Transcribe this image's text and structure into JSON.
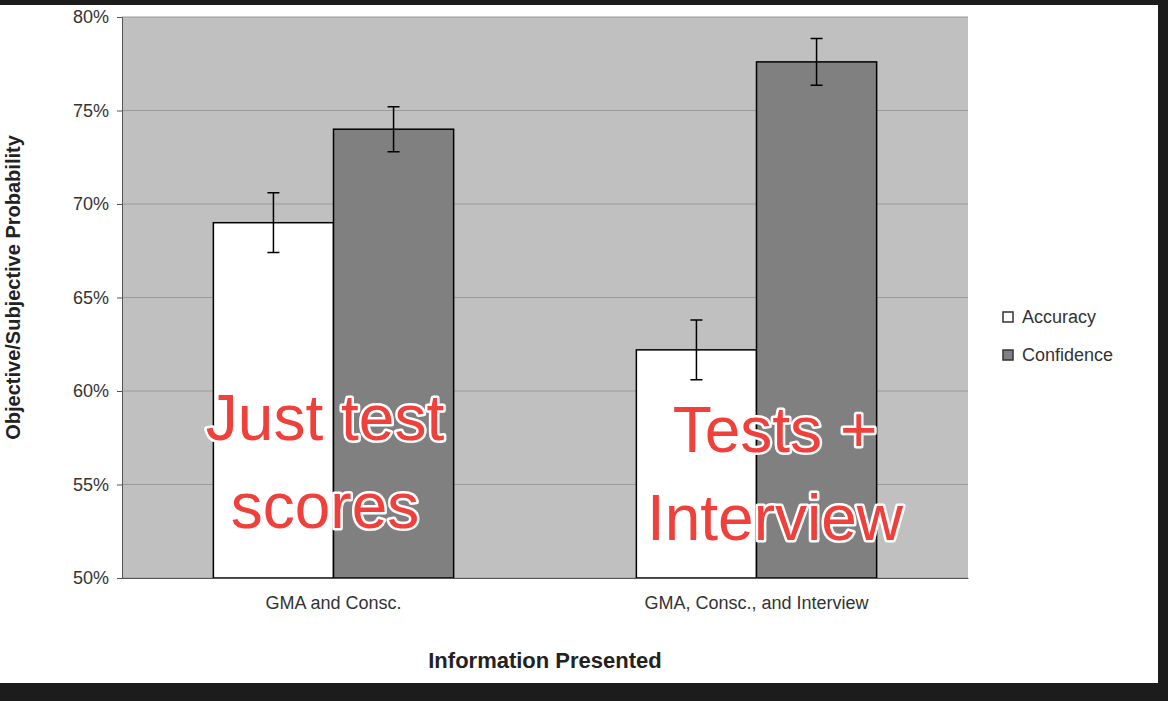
{
  "chart_data": {
    "type": "bar",
    "categories": [
      "GMA and Consc.",
      "GMA, Consc., and Interview"
    ],
    "series": [
      {
        "name": "Accuracy",
        "color": "#ffffff",
        "values": [
          69,
          62.2
        ],
        "errors": [
          1.6,
          1.6
        ]
      },
      {
        "name": "Confidence",
        "color": "#808080",
        "values": [
          74,
          77.6
        ],
        "errors": [
          1.2,
          1.25
        ]
      }
    ],
    "x_label": "Information Presented",
    "y_label": "Objective/Subjective Probability",
    "ylim": [
      50,
      80
    ],
    "yticks": [
      {
        "value": 50,
        "label": "50%"
      },
      {
        "value": 55,
        "label": "55%"
      },
      {
        "value": 60,
        "label": "60%"
      },
      {
        "value": 65,
        "label": "65%"
      },
      {
        "value": 70,
        "label": "70%"
      },
      {
        "value": 75,
        "label": "75%"
      },
      {
        "value": 80,
        "label": "80%"
      }
    ],
    "grid": true,
    "legend": "right",
    "annotations": [
      {
        "text": "Just test\nscores"
      },
      {
        "text": "Tests +\nInterview"
      }
    ]
  }
}
